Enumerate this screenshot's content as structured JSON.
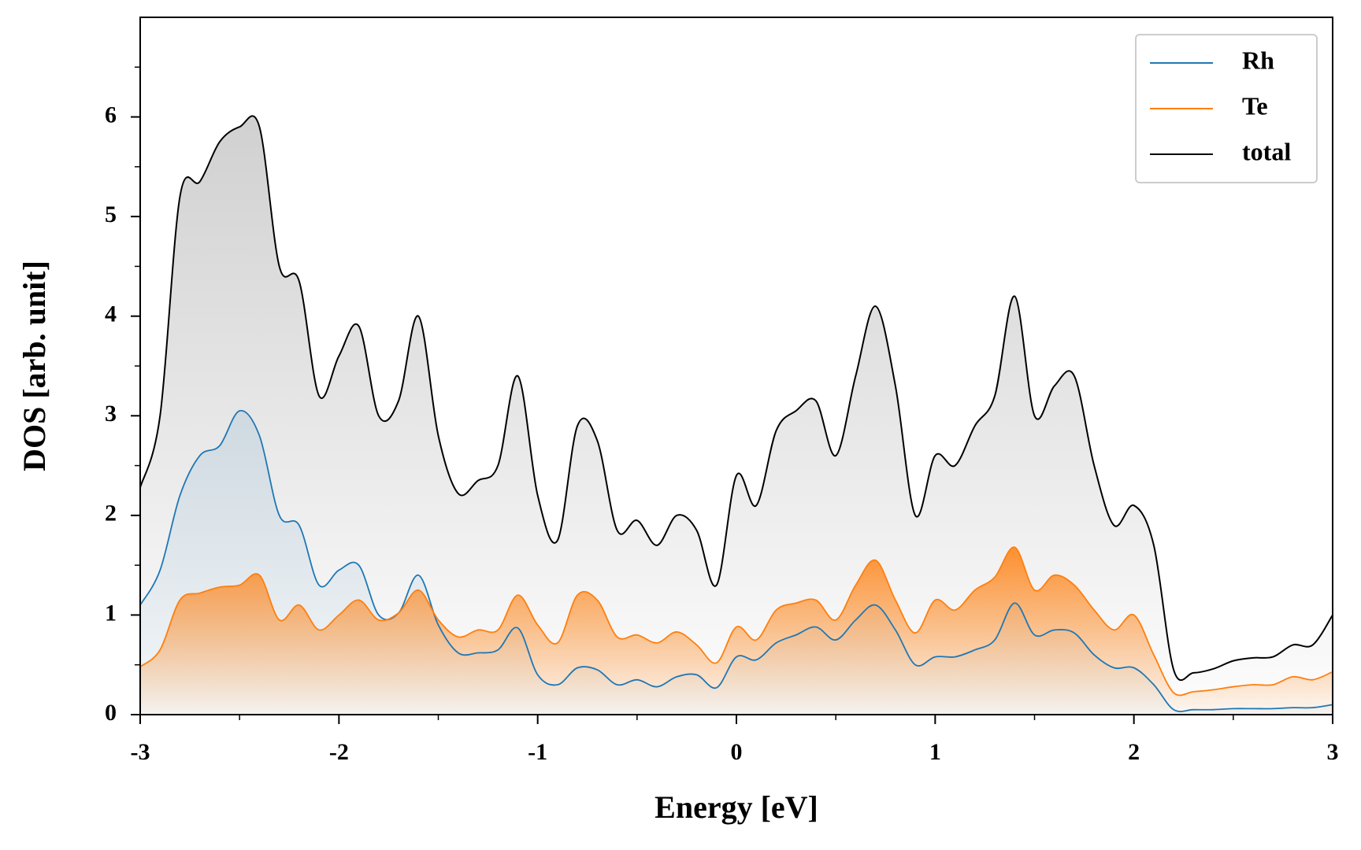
{
  "chart_data": {
    "type": "line",
    "xlabel": "Energy [eV]",
    "ylabel": "DOS [arb. unit]",
    "x": [
      -3,
      -2.9,
      -2.8,
      -2.7,
      -2.6,
      -2.5,
      -2.4,
      -2.3,
      -2.2,
      -2.1,
      -2,
      -1.9,
      -1.8,
      -1.7,
      -1.6,
      -1.5,
      -1.4,
      -1.3,
      -1.2,
      -1.1,
      -1,
      -0.9,
      -0.8,
      -0.7,
      -0.6,
      -0.5,
      -0.4,
      -0.3,
      -0.2,
      -0.1,
      0,
      0.1,
      0.2,
      0.3,
      0.4,
      0.5,
      0.6,
      0.7,
      0.8,
      0.9,
      1,
      1.1,
      1.2,
      1.3,
      1.4,
      1.5,
      1.6,
      1.7,
      1.8,
      1.9,
      2,
      2.1,
      2.2,
      2.3,
      2.4,
      2.5,
      2.6,
      2.7,
      2.8,
      2.9,
      3
    ],
    "series": [
      {
        "name": "Rh",
        "color": "#1f77b4",
        "values": [
          1.1,
          1.45,
          2.2,
          2.6,
          2.7,
          3.05,
          2.8,
          2.0,
          1.9,
          1.3,
          1.45,
          1.5,
          1.0,
          1.02,
          1.4,
          0.9,
          0.62,
          0.62,
          0.65,
          0.87,
          0.4,
          0.3,
          0.47,
          0.45,
          0.3,
          0.35,
          0.28,
          0.38,
          0.4,
          0.27,
          0.58,
          0.55,
          0.72,
          0.8,
          0.88,
          0.75,
          0.95,
          1.1,
          0.85,
          0.5,
          0.58,
          0.58,
          0.65,
          0.75,
          1.12,
          0.8,
          0.85,
          0.82,
          0.6,
          0.47,
          0.47,
          0.3,
          0.05,
          0.05,
          0.05,
          0.06,
          0.06,
          0.06,
          0.07,
          0.07,
          0.1
        ]
      },
      {
        "name": "Te",
        "color": "#ff7f0e",
        "values": [
          0.48,
          0.65,
          1.15,
          1.22,
          1.28,
          1.3,
          1.4,
          0.95,
          1.1,
          0.85,
          1.0,
          1.15,
          0.95,
          1.02,
          1.25,
          0.95,
          0.78,
          0.85,
          0.85,
          1.2,
          0.9,
          0.72,
          1.2,
          1.15,
          0.78,
          0.8,
          0.72,
          0.83,
          0.7,
          0.52,
          0.88,
          0.75,
          1.05,
          1.12,
          1.15,
          0.95,
          1.3,
          1.55,
          1.15,
          0.82,
          1.15,
          1.05,
          1.25,
          1.38,
          1.68,
          1.25,
          1.4,
          1.3,
          1.05,
          0.85,
          1.0,
          0.6,
          0.22,
          0.23,
          0.25,
          0.28,
          0.3,
          0.3,
          0.38,
          0.35,
          0.43
        ]
      },
      {
        "name": "total",
        "color": "#000000",
        "values": [
          2.28,
          3.0,
          5.2,
          5.35,
          5.75,
          5.9,
          5.9,
          4.5,
          4.35,
          3.2,
          3.6,
          3.9,
          3.0,
          3.15,
          4.0,
          2.8,
          2.22,
          2.35,
          2.5,
          3.4,
          2.2,
          1.75,
          2.9,
          2.75,
          1.85,
          1.95,
          1.7,
          2.0,
          1.85,
          1.3,
          2.4,
          2.1,
          2.85,
          3.05,
          3.15,
          2.6,
          3.4,
          4.1,
          3.3,
          2.0,
          2.6,
          2.5,
          2.9,
          3.2,
          4.2,
          3.0,
          3.3,
          3.4,
          2.5,
          1.9,
          2.1,
          1.7,
          0.45,
          0.42,
          0.46,
          0.54,
          0.57,
          0.58,
          0.7,
          0.7,
          1.0
        ]
      }
    ],
    "xlim": [
      -3,
      3
    ],
    "ylim": [
      0,
      7
    ],
    "xticks": [
      -3,
      -2,
      -1,
      0,
      1,
      2,
      3
    ],
    "yticks": [
      0,
      1,
      2,
      3,
      4,
      5,
      6
    ],
    "xminorticks": [
      -2.5,
      -1.5,
      -0.5,
      0.5,
      1.5,
      2.5
    ],
    "yminorticks": [
      0.5,
      1.5,
      2.5,
      3.5,
      4.5,
      5.5,
      6.5
    ],
    "legend": "upper right",
    "filled": true
  }
}
